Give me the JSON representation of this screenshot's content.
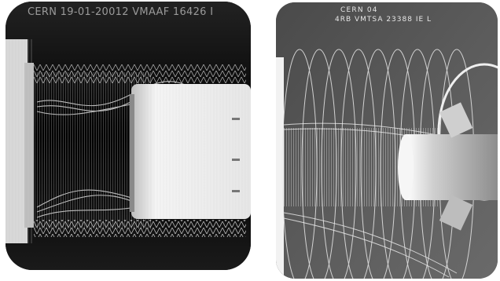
{
  "left_image": {
    "caption": "CERN 19-01-20012 VMAAF 16426 I"
  },
  "right_image": {
    "caption_line1": "CERN 04",
    "caption_line2": "4RB VMTSA 23388   IE   L"
  },
  "colors": {
    "page_background": "#ffffff",
    "left_film": "#060606",
    "right_film": "#5a5a5a",
    "xray_highlight": "#f2f2f2"
  }
}
